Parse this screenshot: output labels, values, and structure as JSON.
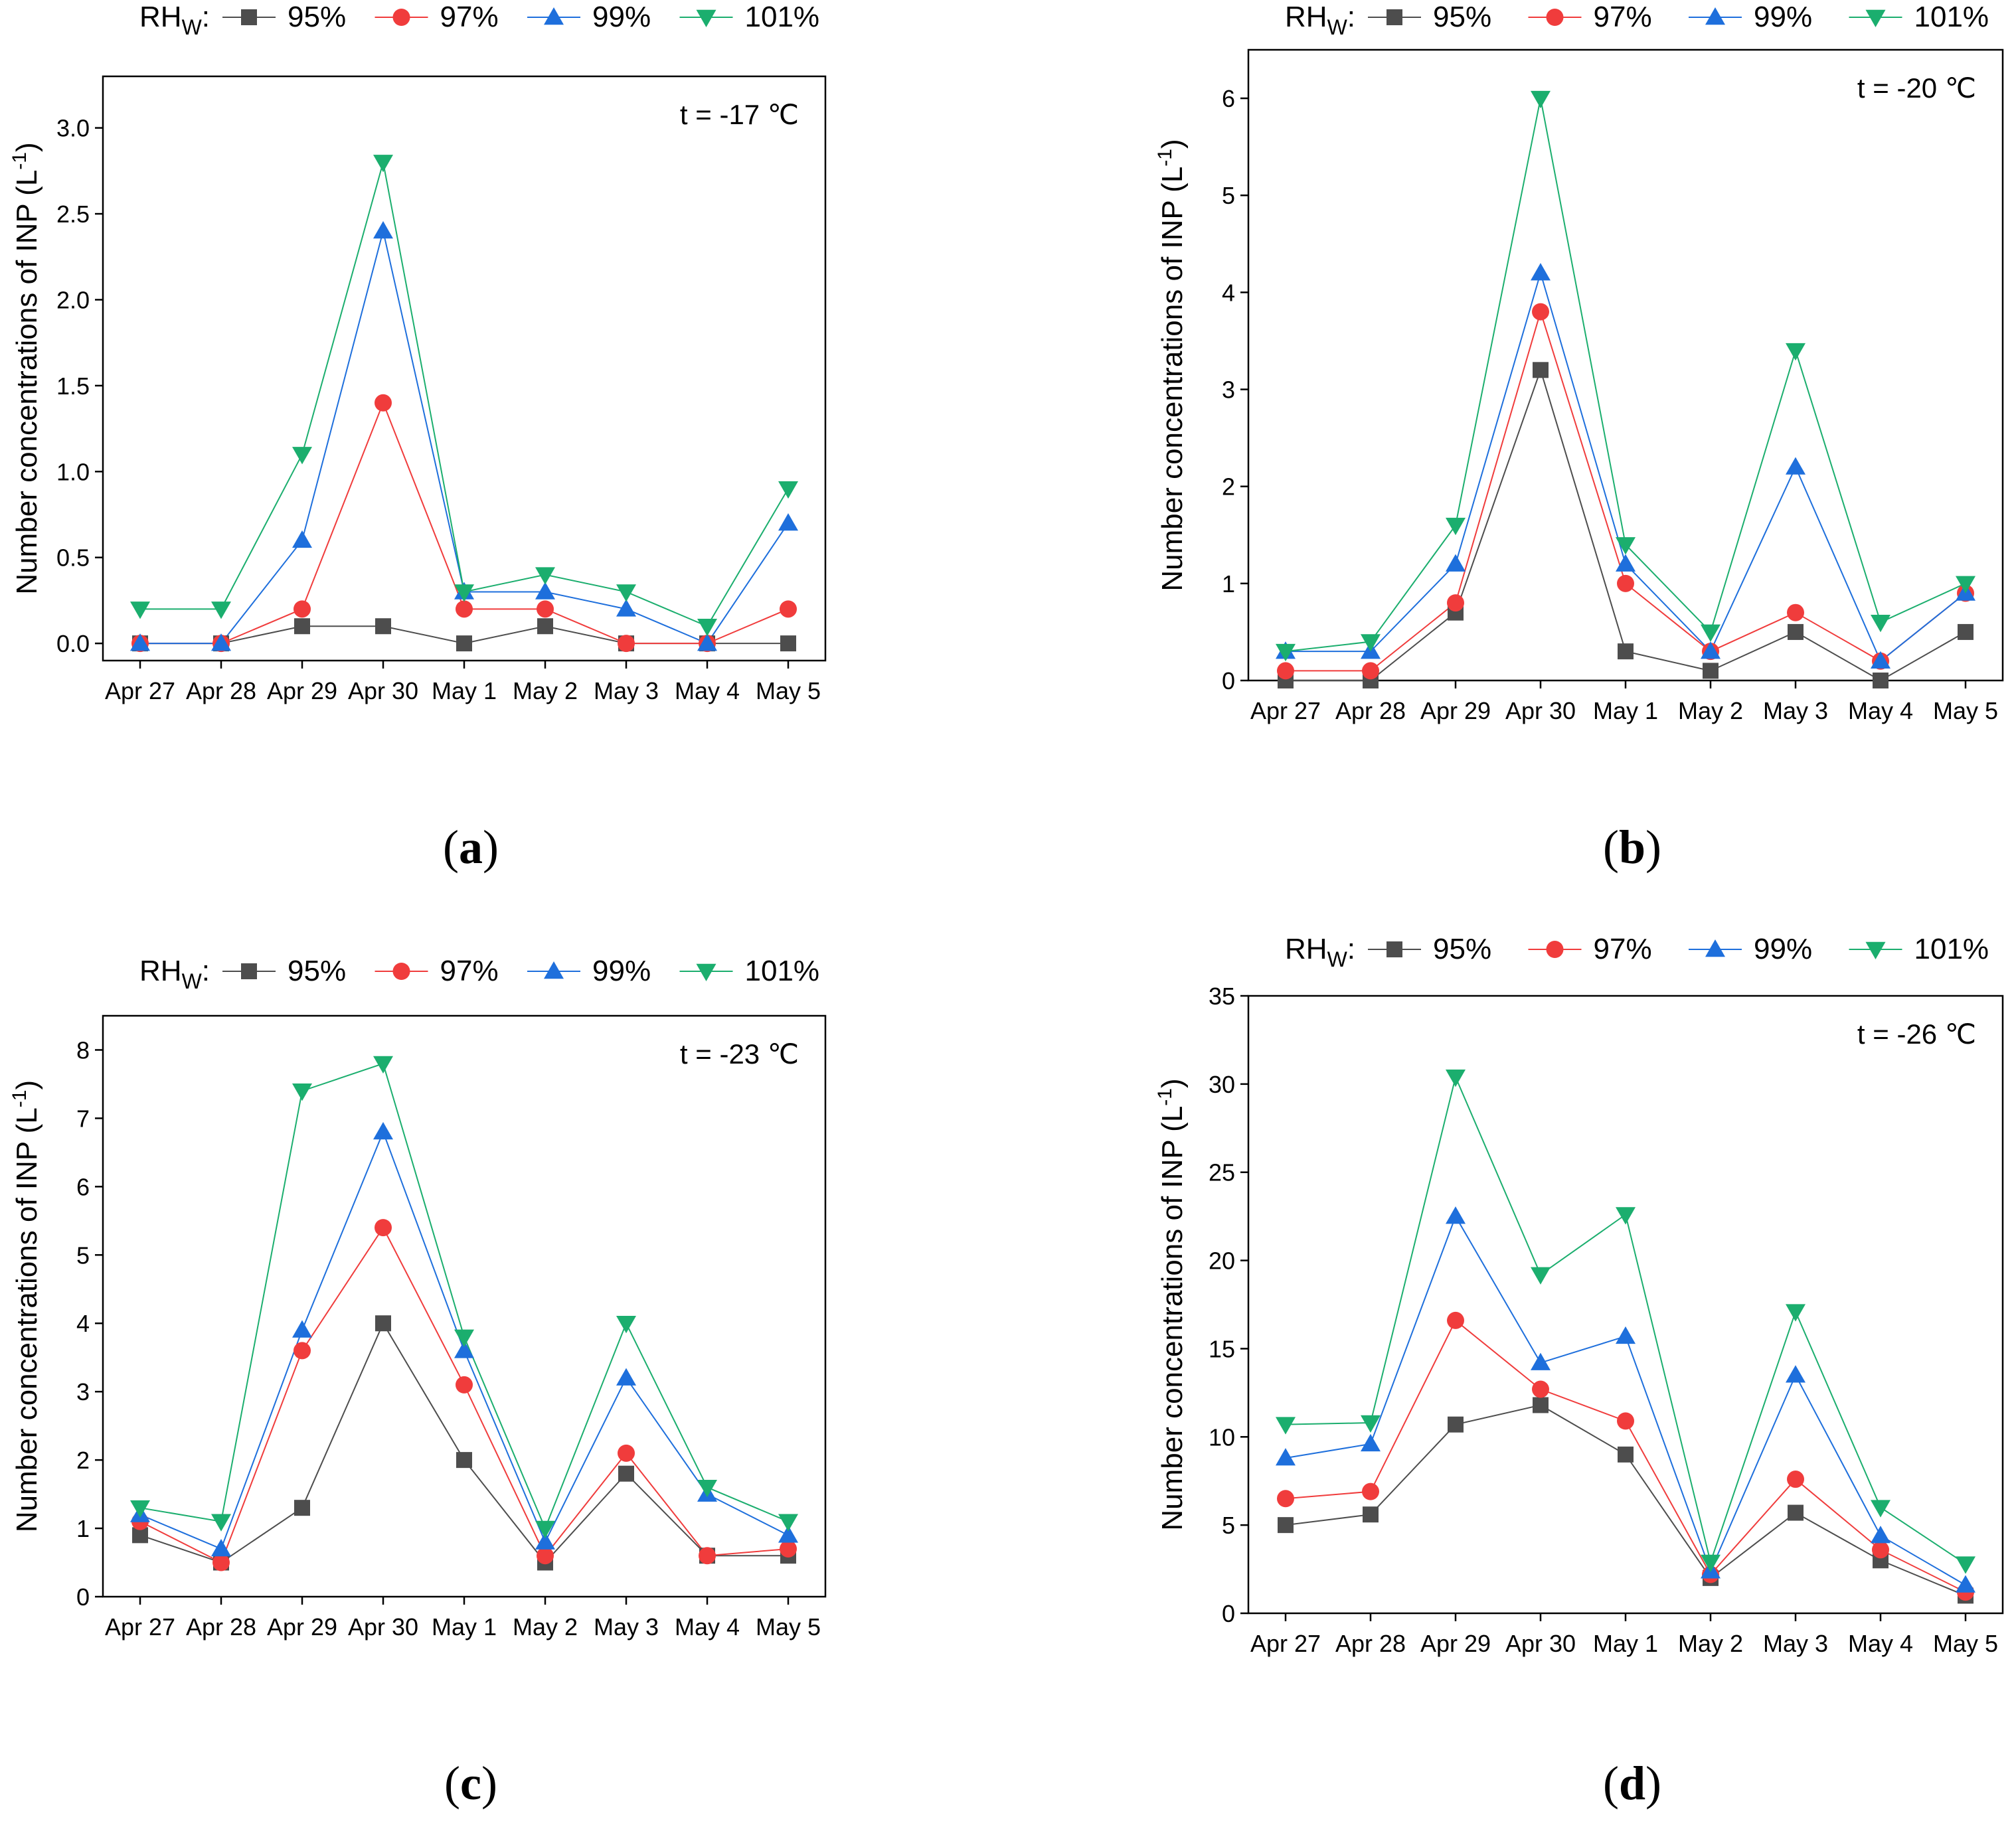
{
  "figure": {
    "legend_prefix": "RH",
    "legend_prefix_sub": "W",
    "legend_suffix": ":",
    "series_names": [
      "95%",
      "97%",
      "99%",
      "101%"
    ],
    "series_colors": [
      "#4d4d4d",
      "#f03c3c",
      "#1e6fdc",
      "#1bae6e"
    ],
    "series_markers": [
      "square",
      "circle",
      "triangle-up",
      "triangle-down"
    ],
    "ylabel_main": "Number concentrations of INP (L",
    "ylabel_sup": "-1",
    "ylabel_end": ")"
  },
  "chart_data": [
    {
      "type": "line",
      "panel_label": "a",
      "temperature_label": "t = -17 ℃",
      "categories": [
        "Apr 27",
        "Apr 28",
        "Apr 29",
        "Apr 30",
        "May 1",
        "May 2",
        "May 3",
        "May 4",
        "May 5"
      ],
      "ylim": [
        -0.1,
        3.3
      ],
      "yticks": [
        0.0,
        0.5,
        1.0,
        1.5,
        2.0,
        2.5,
        3.0
      ],
      "ytick_labels": [
        "0.0",
        "0.5",
        "1.0",
        "1.5",
        "2.0",
        "2.5",
        "3.0"
      ],
      "series": [
        {
          "name": "95%",
          "values": [
            0.0,
            0.0,
            0.1,
            0.1,
            0.0,
            0.1,
            0.0,
            0.0,
            0.0
          ]
        },
        {
          "name": "97%",
          "values": [
            0.0,
            0.0,
            0.2,
            1.4,
            0.2,
            0.2,
            0.0,
            0.0,
            0.2
          ]
        },
        {
          "name": "99%",
          "values": [
            0.0,
            0.0,
            0.6,
            2.4,
            0.3,
            0.3,
            0.2,
            0.0,
            0.7
          ]
        },
        {
          "name": "101%",
          "values": [
            0.2,
            0.2,
            1.1,
            2.8,
            0.3,
            0.4,
            0.3,
            0.1,
            0.9
          ]
        }
      ]
    },
    {
      "type": "line",
      "panel_label": "b",
      "temperature_label": "t = -20 ℃",
      "categories": [
        "Apr 27",
        "Apr 28",
        "Apr 29",
        "Apr 30",
        "May 1",
        "May 2",
        "May 3",
        "May 4",
        "May 5"
      ],
      "ylim": [
        0,
        6.5
      ],
      "yticks": [
        0,
        1,
        2,
        3,
        4,
        5,
        6
      ],
      "ytick_labels": [
        "0",
        "1",
        "2",
        "3",
        "4",
        "5",
        "6"
      ],
      "series": [
        {
          "name": "95%",
          "values": [
            0.0,
            0.0,
            0.7,
            3.2,
            0.3,
            0.1,
            0.5,
            0.0,
            0.5
          ]
        },
        {
          "name": "97%",
          "values": [
            0.1,
            0.1,
            0.8,
            3.8,
            1.0,
            0.3,
            0.7,
            0.2,
            0.9
          ]
        },
        {
          "name": "99%",
          "values": [
            0.3,
            0.3,
            1.2,
            4.2,
            1.2,
            0.3,
            2.2,
            0.2,
            0.9
          ]
        },
        {
          "name": "101%",
          "values": [
            0.3,
            0.4,
            1.6,
            6.0,
            1.4,
            0.5,
            3.4,
            0.6,
            1.0
          ]
        }
      ]
    },
    {
      "type": "line",
      "panel_label": "c",
      "temperature_label": "t = -23 ℃",
      "categories": [
        "Apr 27",
        "Apr 28",
        "Apr 29",
        "Apr 30",
        "May 1",
        "May 2",
        "May 3",
        "May 4",
        "May 5"
      ],
      "ylim": [
        0,
        8.5
      ],
      "yticks": [
        0,
        1,
        2,
        3,
        4,
        5,
        6,
        7,
        8
      ],
      "ytick_labels": [
        "0",
        "1",
        "2",
        "3",
        "4",
        "5",
        "6",
        "7",
        "8"
      ],
      "series": [
        {
          "name": "95%",
          "values": [
            0.9,
            0.5,
            1.3,
            4.0,
            2.0,
            0.5,
            1.8,
            0.6,
            0.6
          ]
        },
        {
          "name": "97%",
          "values": [
            1.1,
            0.5,
            3.6,
            5.4,
            3.1,
            0.6,
            2.1,
            0.6,
            0.7
          ]
        },
        {
          "name": "99%",
          "values": [
            1.2,
            0.7,
            3.9,
            6.8,
            3.6,
            0.8,
            3.2,
            1.5,
            0.9
          ]
        },
        {
          "name": "101%",
          "values": [
            1.3,
            1.1,
            7.4,
            7.8,
            3.8,
            1.0,
            4.0,
            1.6,
            1.1
          ]
        }
      ]
    },
    {
      "type": "line",
      "panel_label": "d",
      "temperature_label": "t = -26 ℃",
      "categories": [
        "Apr 27",
        "Apr 28",
        "Apr 29",
        "Apr 30",
        "May 1",
        "May 2",
        "May 3",
        "May 4",
        "May 5"
      ],
      "ylim": [
        0,
        35
      ],
      "yticks": [
        0,
        5,
        10,
        15,
        20,
        25,
        30,
        35
      ],
      "ytick_labels": [
        "0",
        "5",
        "10",
        "15",
        "20",
        "25",
        "30",
        "35"
      ],
      "series": [
        {
          "name": "95%",
          "values": [
            5.0,
            5.6,
            10.7,
            11.8,
            9.0,
            2.0,
            5.7,
            3.0,
            1.0
          ]
        },
        {
          "name": "97%",
          "values": [
            6.5,
            6.9,
            16.6,
            12.7,
            10.9,
            2.2,
            7.6,
            3.6,
            1.2
          ]
        },
        {
          "name": "99%",
          "values": [
            8.8,
            9.6,
            22.5,
            14.2,
            15.7,
            2.4,
            13.5,
            4.4,
            1.6
          ]
        },
        {
          "name": "101%",
          "values": [
            10.7,
            10.8,
            30.4,
            19.2,
            22.6,
            2.9,
            17.1,
            6.0,
            2.8
          ]
        }
      ]
    }
  ]
}
